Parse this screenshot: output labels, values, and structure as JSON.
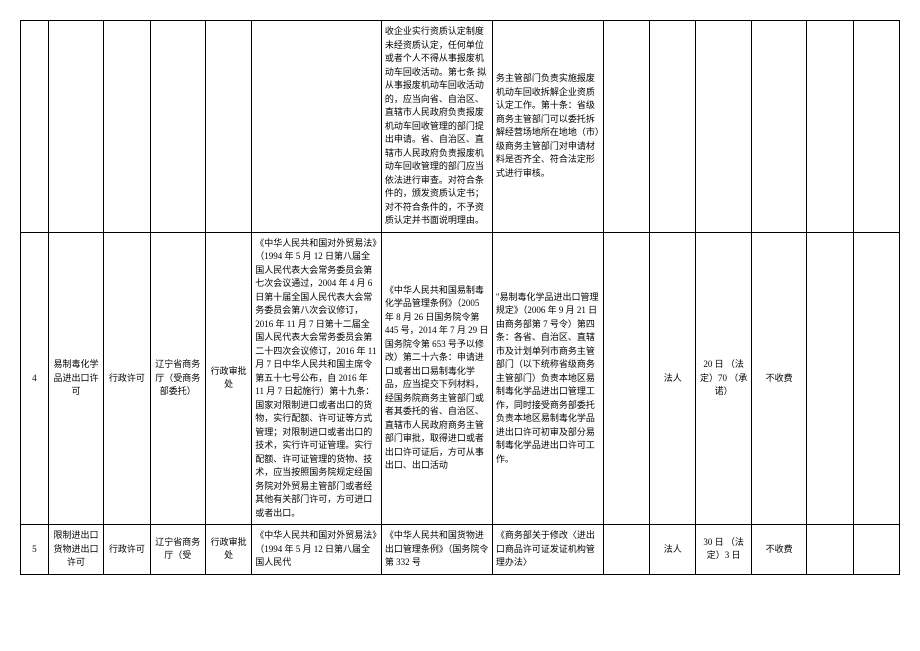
{
  "rows": [
    {
      "num": "",
      "name": "",
      "type": "",
      "dept": "",
      "cat": "",
      "basis1": "",
      "basis2": "收企业实行资质认定制度未经资质认定，任何单位或者个人不得从事报废机动车回收活动。第七条 拟从事报废机动车回收活动的，应当向省、自治区、直辖市人民政府负责报废机动车回收管理的部门提出申请。省、自治区、直辖市人民政府负责报废机动车回收管理的部门应当依法进行审查。对符合条件的，颁发资质认定书；对不符合条件的，不予资质认定并书面说明理由。",
      "basis3": "务主管部门负责实施报废机动车回收拆解企业资质认定工作。第十条：省级商务主管部门可以委托拆解经营场地所在地地（市）级商务主管部门对申请材料是否齐全、符合法定形式进行审核。",
      "blank1": "",
      "subject": "",
      "days": "",
      "fee": "",
      "blank2": "",
      "blank3": ""
    },
    {
      "num": "4",
      "name": "易制毒化学品进出口许可",
      "type": "行政许可",
      "dept": "辽宁省商务厅（受商务部委托）",
      "cat": "行政审批处",
      "basis1": "《中华人民共和国对外贸易法》（1994 年 5 月 12 日第八届全国人民代表大会常务委员会第七次会议通过，2004 年 4 月 6 日第十届全国人民代表大会常务委员会第八次会议修订，2016 年 11 月 7 日第十二届全国人民代表大会常务委员会第二十四次会议修订，2016 年 11 月 7 日中华人民共和国主席令第五十七号公布，自 2016 年 11 月 7 日起施行）第十九条：国家对限制进口或者出口的货物，实行配额、许可证等方式管理；对限制进口或者出口的技术，实行许可证管理。实行配额、许可证管理的货物、技术，应当按照国务院规定经国务院对外贸易主管部门或者经其他有关部门许可，方可进口或者出口。",
      "basis2": "《中华人民共和国易制毒化学品管理条例》（2005 年 8 月 26 日国务院令第 445 号，2014 年 7 月 29 日国务院令第 653 号予以修改）第二十六条：申请进口或者出口易制毒化学品，应当提交下列材料，经国务院商务主管部门或者其委托的省、自治区、直辖市人民政府商务主管部门审批，取得进口或者出口许可证后，方可从事出口、出口活动",
      "basis3": "\"易制毒化学品进出口管理规定》（2006 年 9 月 21 日由商务部第 7 号令）第四条：各省、自治区、直辖市及计划单列市商务主管部门（以下统称省级商务主管部门）负责本地区易制毒化学品进出口管理工作，同时接受商务部委托负责本地区易制毒化学品进出口许可初审及部分易制毒化学品进出口许可工作。",
      "blank1": "",
      "subject": "法人",
      "days": "20 日\n（法定）70\n（承诺）",
      "fee": "不收费",
      "blank2": "",
      "blank3": ""
    },
    {
      "num": "5",
      "name": "限制进出口货物进出口许可",
      "type": "行政许可",
      "dept": "辽宁省商务厅（受",
      "cat": "行政审批处",
      "basis1": "《中华人民共和国对外贸易法》（1994 年 5 月 12 日第八届全国人民代",
      "basis2": "《中华人民共和国货物进出口管理条例》（国务院令第 332 号",
      "basis3": "《商务部关于修改〈进出口商品许可证发证机构管理办法〉",
      "blank1": "",
      "subject": "法人",
      "days": "30 日\n（法定）3 日",
      "fee": "不收费",
      "blank2": "",
      "blank3": ""
    }
  ]
}
